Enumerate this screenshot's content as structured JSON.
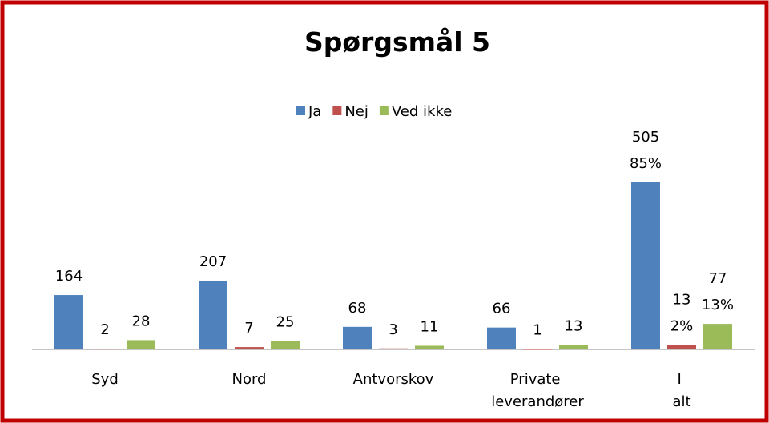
{
  "chart_data": {
    "type": "bar",
    "title": "Spørgsmål 5",
    "categories": [
      "Syd",
      "Nord",
      "Antvorskov",
      "Private leverandører",
      "I alt"
    ],
    "series": [
      {
        "name": "Ja",
        "color": "#4f81bd",
        "values": [
          164,
          207,
          68,
          66,
          505
        ],
        "percent_labels": [
          null,
          null,
          null,
          null,
          "85%"
        ]
      },
      {
        "name": "Nej",
        "color": "#c0504d",
        "values": [
          2,
          7,
          3,
          1,
          13
        ],
        "percent_labels": [
          null,
          null,
          null,
          null,
          "2%"
        ]
      },
      {
        "name": "Ved ikke",
        "color": "#9bbb59",
        "values": [
          28,
          25,
          11,
          13,
          77
        ],
        "percent_labels": [
          null,
          null,
          null,
          null,
          "13%"
        ]
      }
    ],
    "ylim": [
      0,
      700
    ],
    "legend": "top"
  }
}
